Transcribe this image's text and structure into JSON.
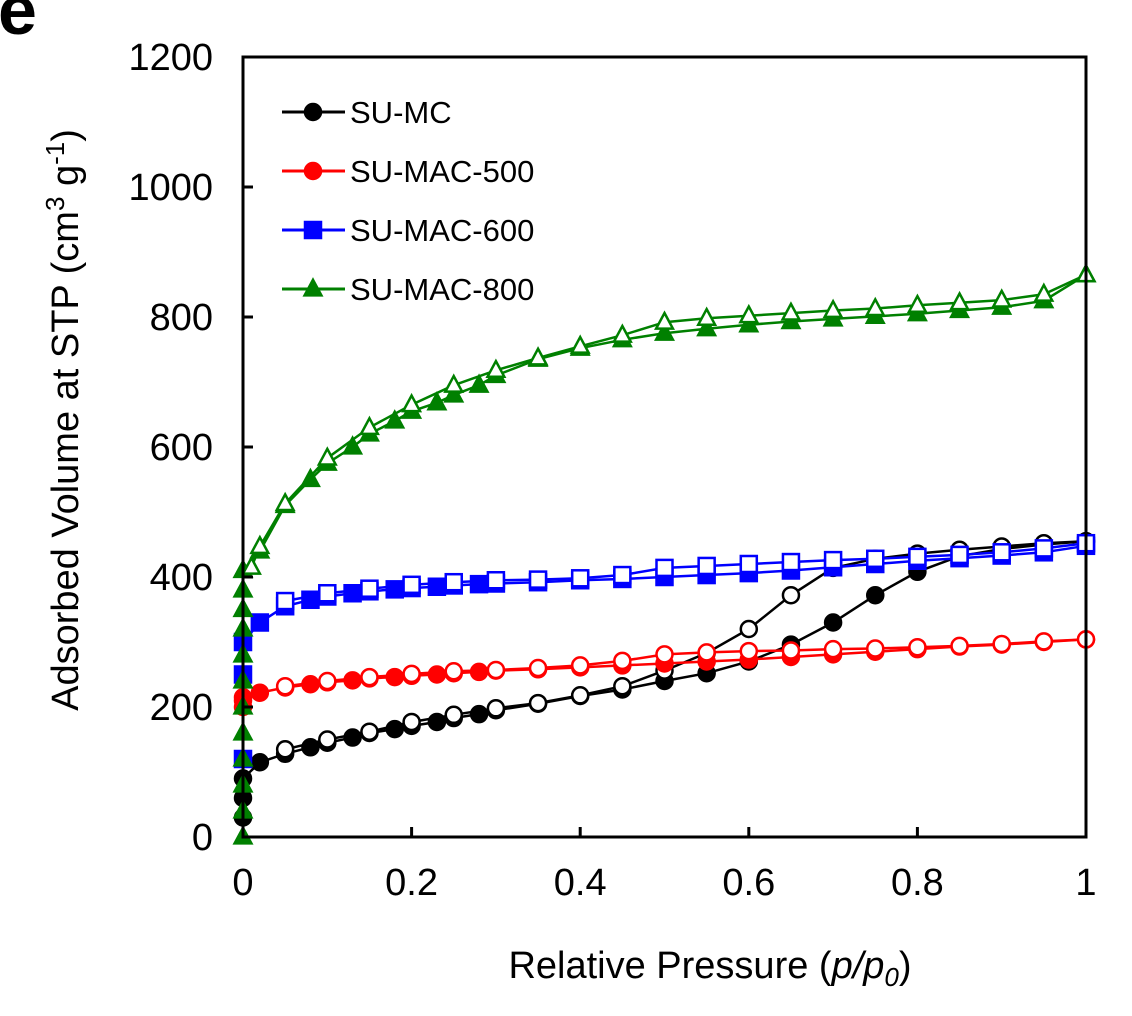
{
  "chart_data": {
    "type": "line",
    "panel_label": "e",
    "xlabel": {
      "prefix": "Relative Pressure (",
      "p": "p",
      "slash": "/",
      "p0": "p",
      "sub0": "0",
      "suffix": ")"
    },
    "ylabel": {
      "main": "Adsorbed Volume at STP (cm",
      "sup3": "3",
      "mid": " g",
      "supm1": "-1",
      "end": ")"
    },
    "xlim": [
      0,
      1
    ],
    "ylim": [
      0,
      1200
    ],
    "xticks": [
      "0",
      "0.2",
      "0.4",
      "0.6",
      "0.8",
      "1"
    ],
    "yticks": [
      "0",
      "200",
      "400",
      "600",
      "800",
      "1000",
      "1200"
    ],
    "grid": false,
    "legend_position": "top-left",
    "note": "Filled markers: adsorption branch; open markers: desorption branch",
    "series": [
      {
        "name": "SU-MC",
        "color": "#000000",
        "marker": "circle",
        "adsorption": {
          "x": [
            0.0,
            0.0,
            0.0,
            0.02,
            0.05,
            0.08,
            0.1,
            0.13,
            0.15,
            0.18,
            0.2,
            0.23,
            0.25,
            0.28,
            0.3,
            0.35,
            0.4,
            0.45,
            0.5,
            0.55,
            0.6,
            0.65,
            0.7,
            0.75,
            0.8,
            0.85,
            0.9,
            0.95,
            1.0
          ],
          "y": [
            30,
            60,
            90,
            115,
            128,
            138,
            145,
            153,
            160,
            166,
            171,
            177,
            183,
            189,
            195,
            205,
            217,
            227,
            240,
            252,
            270,
            296,
            330,
            372,
            408,
            432,
            443,
            450,
            455
          ]
        },
        "desorption": {
          "x": [
            1.0,
            0.95,
            0.9,
            0.85,
            0.8,
            0.75,
            0.7,
            0.65,
            0.6,
            0.55,
            0.5,
            0.45,
            0.4,
            0.35,
            0.3,
            0.25,
            0.2,
            0.15,
            0.1,
            0.05
          ],
          "y": [
            455,
            452,
            447,
            442,
            436,
            428,
            414,
            372,
            320,
            283,
            256,
            232,
            218,
            206,
            198,
            188,
            177,
            162,
            150,
            135
          ]
        }
      },
      {
        "name": "SU-MAC-500",
        "color": "#ff0000",
        "marker": "circle",
        "adsorption": {
          "x": [
            0.0,
            0.0,
            0.0,
            0.02,
            0.05,
            0.08,
            0.1,
            0.13,
            0.15,
            0.18,
            0.2,
            0.23,
            0.25,
            0.28,
            0.3,
            0.35,
            0.4,
            0.45,
            0.5,
            0.55,
            0.6,
            0.65,
            0.7,
            0.75,
            0.8,
            0.85,
            0.9,
            0.95,
            1.0
          ],
          "y": [
            200,
            210,
            215,
            222,
            230,
            235,
            238,
            241,
            244,
            246,
            248,
            250,
            252,
            254,
            256,
            258,
            261,
            264,
            267,
            270,
            273,
            277,
            281,
            285,
            289,
            293,
            296,
            300,
            304
          ]
        },
        "desorption": {
          "x": [
            1.0,
            0.95,
            0.9,
            0.85,
            0.8,
            0.75,
            0.7,
            0.65,
            0.6,
            0.55,
            0.5,
            0.45,
            0.4,
            0.35,
            0.3,
            0.25,
            0.2,
            0.15,
            0.1,
            0.05
          ],
          "y": [
            304,
            301,
            297,
            294,
            292,
            290,
            289,
            287,
            286,
            284,
            281,
            271,
            264,
            260,
            257,
            255,
            251,
            246,
            240,
            232
          ]
        }
      },
      {
        "name": "SU-MAC-600",
        "color": "#0000ff",
        "marker": "square",
        "adsorption": {
          "x": [
            0.0,
            0.0,
            0.0,
            0.02,
            0.05,
            0.08,
            0.1,
            0.13,
            0.15,
            0.18,
            0.2,
            0.23,
            0.25,
            0.28,
            0.3,
            0.35,
            0.4,
            0.45,
            0.5,
            0.55,
            0.6,
            0.65,
            0.7,
            0.75,
            0.8,
            0.85,
            0.9,
            0.95,
            1.0
          ],
          "y": [
            120,
            250,
            300,
            330,
            355,
            365,
            370,
            375,
            378,
            381,
            383,
            385,
            387,
            389,
            390,
            392,
            395,
            397,
            400,
            403,
            406,
            410,
            415,
            420,
            425,
            429,
            433,
            438,
            448
          ]
        },
        "desorption": {
          "x": [
            1.0,
            0.95,
            0.9,
            0.85,
            0.8,
            0.75,
            0.7,
            0.65,
            0.6,
            0.55,
            0.5,
            0.45,
            0.4,
            0.35,
            0.3,
            0.25,
            0.2,
            0.15,
            0.1,
            0.05
          ],
          "y": [
            452,
            444,
            438,
            434,
            431,
            428,
            426,
            423,
            420,
            417,
            414,
            403,
            398,
            396,
            395,
            392,
            388,
            382,
            375,
            363
          ]
        }
      },
      {
        "name": "SU-MAC-800",
        "color": "#008000",
        "marker": "triangle",
        "adsorption": {
          "x": [
            0.0,
            0.0,
            0.0,
            0.0,
            0.0,
            0.0,
            0.0,
            0.0,
            0.0,
            0.0,
            0.0,
            0.0,
            0.02,
            0.05,
            0.08,
            0.1,
            0.13,
            0.15,
            0.18,
            0.2,
            0.23,
            0.25,
            0.28,
            0.3,
            0.35,
            0.4,
            0.45,
            0.5,
            0.55,
            0.6,
            0.65,
            0.7,
            0.75,
            0.8,
            0.85,
            0.9,
            0.95,
            1.0
          ],
          "y": [
            0,
            40,
            80,
            120,
            160,
            200,
            240,
            280,
            320,
            350,
            380,
            410,
            440,
            510,
            550,
            575,
            600,
            620,
            640,
            655,
            668,
            680,
            695,
            710,
            735,
            752,
            765,
            775,
            782,
            788,
            793,
            797,
            801,
            805,
            810,
            815,
            825,
            865
          ]
        },
        "desorption": {
          "x": [
            1.0,
            0.95,
            0.9,
            0.85,
            0.8,
            0.75,
            0.7,
            0.65,
            0.6,
            0.55,
            0.5,
            0.45,
            0.4,
            0.35,
            0.3,
            0.25,
            0.2,
            0.15,
            0.1,
            0.05,
            0.02,
            0.01
          ],
          "y": [
            865,
            835,
            826,
            822,
            818,
            813,
            810,
            806,
            802,
            798,
            792,
            772,
            755,
            737,
            718,
            695,
            665,
            630,
            583,
            513,
            447,
            415
          ]
        }
      }
    ]
  }
}
